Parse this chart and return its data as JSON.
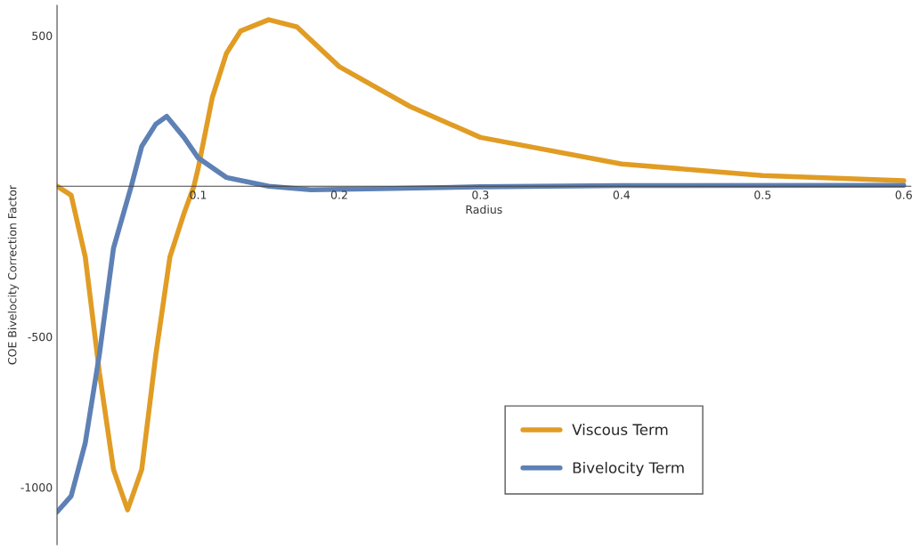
{
  "chart_data": {
    "type": "line",
    "xlabel": "Radius",
    "ylabel": "COE Bivelocity Correction Factor",
    "xlim": [
      0,
      0.605
    ],
    "ylim": [
      -1190,
      600
    ],
    "xticks": [
      0.1,
      0.2,
      0.3,
      0.4,
      0.5,
      0.6
    ],
    "yticks": [
      -1000,
      -500,
      500
    ],
    "grid": false,
    "legend": "bottom right",
    "marker": "none",
    "line_style": "solid",
    "series": [
      {
        "name": "Viscous Term",
        "color": "#e19c24",
        "x": [
          0,
          0.01,
          0.02,
          0.03,
          0.04,
          0.05,
          0.06,
          0.07,
          0.08,
          0.09,
          0.097,
          0.1,
          0.11,
          0.12,
          0.13,
          0.15,
          0.17,
          0.2,
          0.25,
          0.3,
          0.4,
          0.5,
          0.6
        ],
        "values": [
          0,
          -30,
          -235,
          -618,
          -941,
          -1075,
          -941,
          -560,
          -235,
          -90,
          0,
          59,
          294,
          441,
          515,
          553,
          529,
          397,
          265,
          162,
          74,
          35,
          18
        ]
      },
      {
        "name": "Bivelocity Term",
        "color": "#5e81b5",
        "x": [
          0,
          0.01,
          0.02,
          0.03,
          0.04,
          0.0526,
          0.06,
          0.07,
          0.0777,
          0.09,
          0.1,
          0.12,
          0.15,
          0.18,
          0.22,
          0.3,
          0.4,
          0.6
        ],
        "values": [
          -1082,
          -1029,
          -853,
          -559,
          -206,
          0,
          132,
          206,
          232,
          162,
          94,
          29,
          0,
          -12,
          -9,
          -2,
          2,
          3
        ]
      }
    ]
  }
}
